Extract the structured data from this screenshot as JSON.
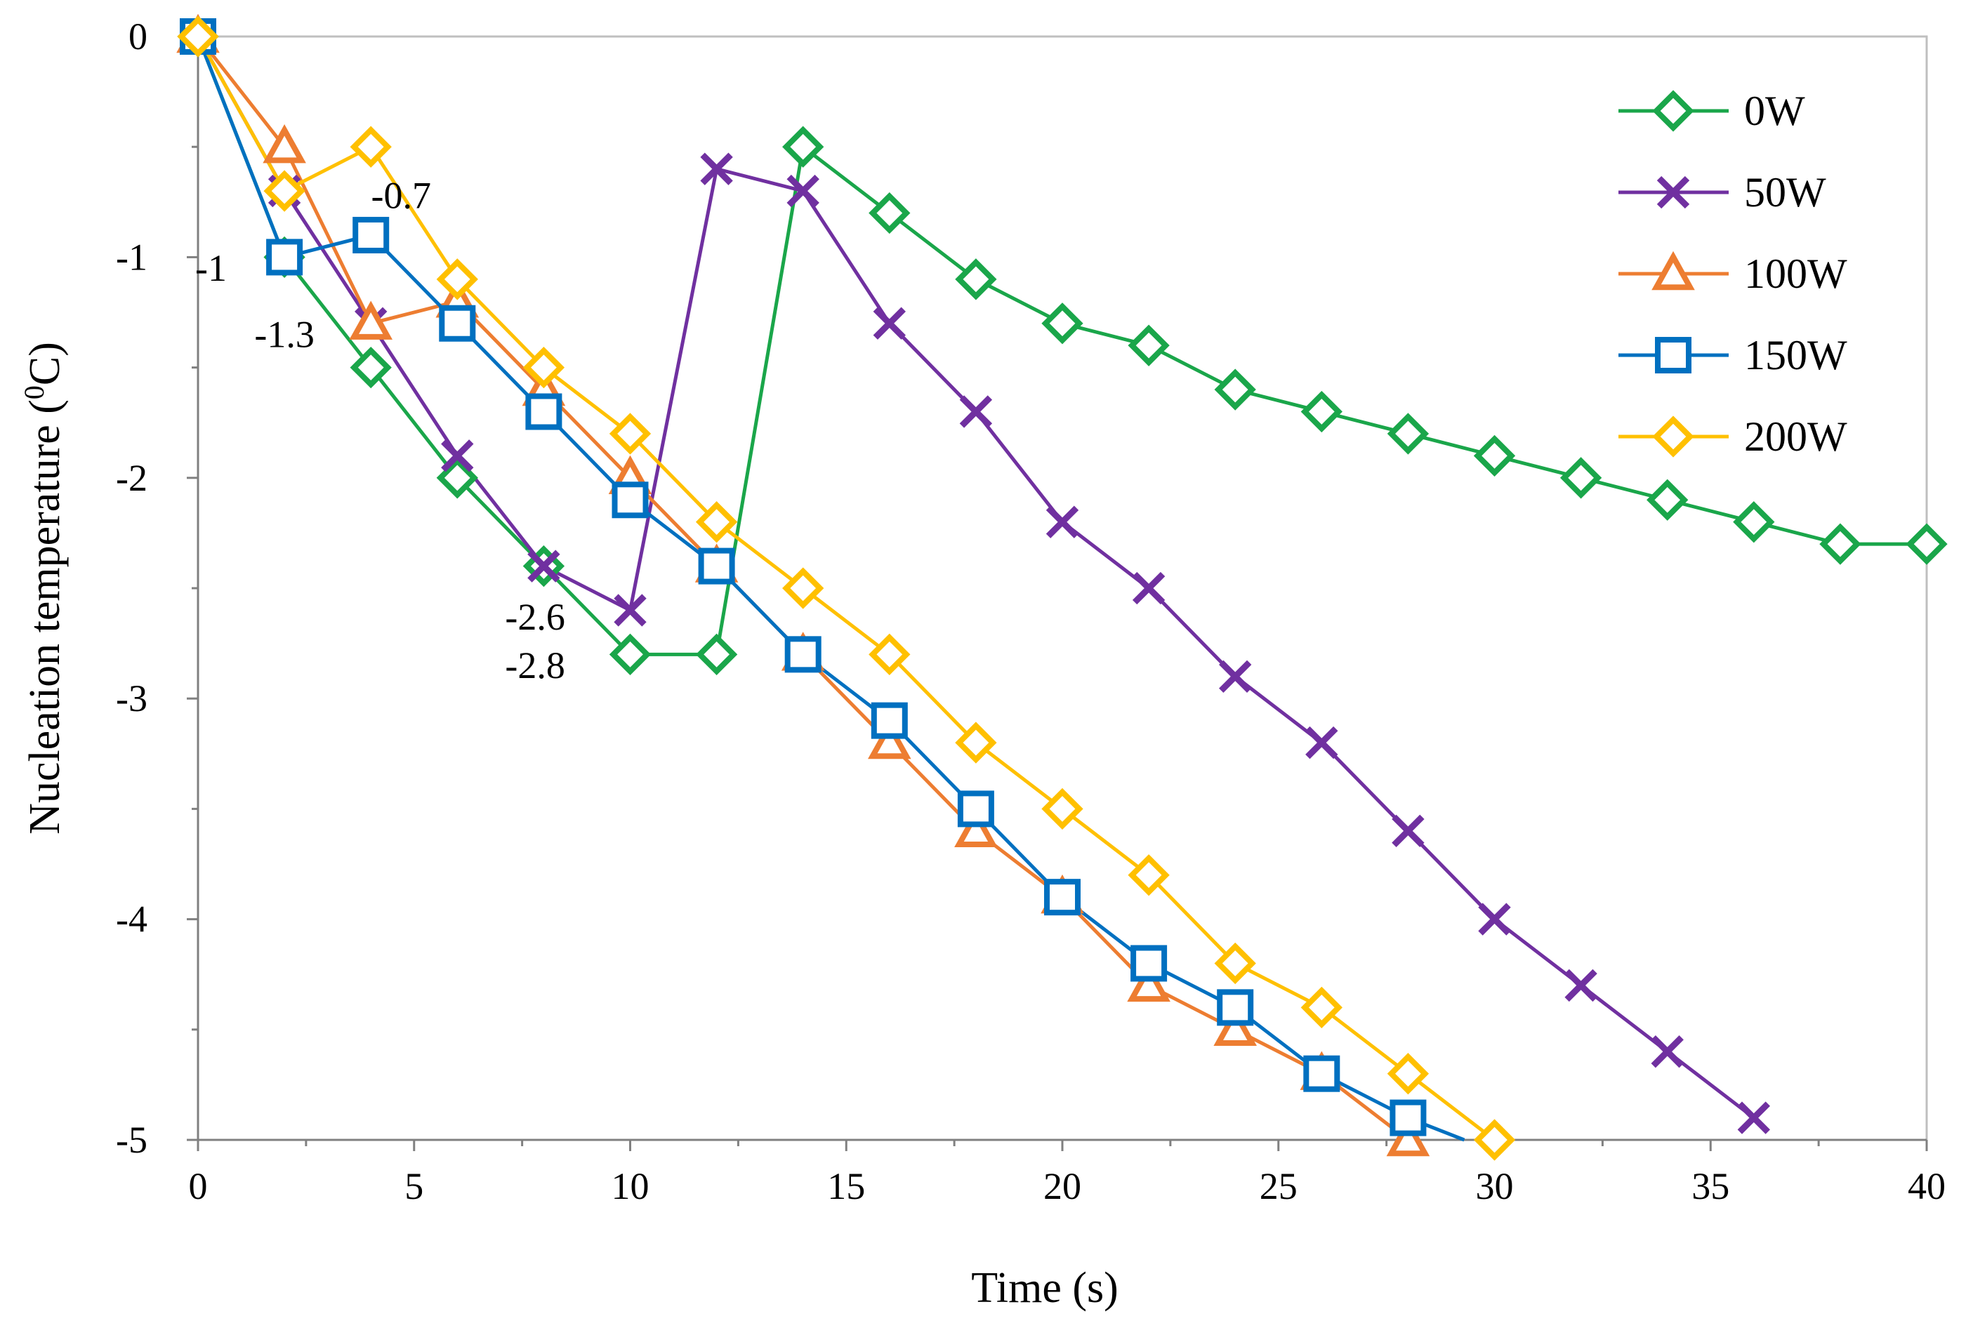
{
  "chart_data": {
    "type": "line",
    "title": "",
    "xlabel": "Time (s)",
    "ylabel": {
      "prefix": "Nucleation temperature (",
      "sup": "0",
      "unit": "C)"
    },
    "xlim": [
      0,
      40
    ],
    "ylim": [
      -5,
      0
    ],
    "xticks": [
      0,
      5,
      10,
      15,
      20,
      25,
      30,
      35,
      40
    ],
    "yticks": [
      0,
      -1,
      -2,
      -3,
      -4,
      -5
    ],
    "grid": false,
    "legend_position": "top-right",
    "series": [
      {
        "name": "0W",
        "color": "#1aa64a",
        "marker": "diamond",
        "x": [
          0,
          2,
          4,
          6,
          8,
          10,
          12,
          14,
          16,
          18,
          20,
          22,
          24,
          26,
          28,
          30,
          32,
          34,
          36,
          38,
          40
        ],
        "y": [
          0,
          -1.0,
          -1.5,
          -2.0,
          -2.4,
          -2.8,
          -2.8,
          -0.5,
          -0.8,
          -1.1,
          -1.3,
          -1.4,
          -1.6,
          -1.7,
          -1.8,
          -1.9,
          -2.0,
          -2.1,
          -2.2,
          -2.3,
          -2.3
        ]
      },
      {
        "name": "50W",
        "color": "#7030a0",
        "marker": "x",
        "x": [
          0,
          2,
          4,
          6,
          8,
          10,
          12,
          14,
          16,
          18,
          20,
          22,
          24,
          26,
          28,
          30,
          32,
          34,
          36
        ],
        "y": [
          0,
          -0.7,
          -1.3,
          -1.9,
          -2.4,
          -2.6,
          -0.6,
          -0.7,
          -1.3,
          -1.7,
          -2.2,
          -2.5,
          -2.9,
          -3.2,
          -3.6,
          -4.0,
          -4.3,
          -4.6,
          -4.9
        ]
      },
      {
        "name": "100W",
        "color": "#ed7d31",
        "marker": "triangle",
        "x": [
          0,
          2,
          4,
          6,
          8,
          10,
          12,
          14,
          16,
          18,
          20,
          22,
          24,
          26,
          28
        ],
        "y": [
          0,
          -0.5,
          -1.3,
          -1.2,
          -1.6,
          -2.0,
          -2.4,
          -2.8,
          -3.2,
          -3.6,
          -3.9,
          -4.3,
          -4.5,
          -4.7,
          -5.0
        ]
      },
      {
        "name": "150W",
        "color": "#0070c0",
        "marker": "square",
        "x": [
          0,
          2,
          4,
          6,
          8,
          10,
          12,
          14,
          16,
          18,
          20,
          22,
          24,
          26,
          28,
          29.3
        ],
        "y": [
          0,
          -1.0,
          -0.9,
          -1.3,
          -1.7,
          -2.1,
          -2.4,
          -2.8,
          -3.1,
          -3.5,
          -3.9,
          -4.2,
          -4.4,
          -4.7,
          -4.9,
          -5.0
        ],
        "markers_through": 15
      },
      {
        "name": "200W",
        "color": "#ffc000",
        "marker": "diamond",
        "x": [
          0,
          2,
          4,
          6,
          8,
          10,
          12,
          14,
          16,
          18,
          20,
          22,
          24,
          26,
          28,
          30
        ],
        "y": [
          0,
          -0.7,
          -0.5,
          -1.1,
          -1.5,
          -1.8,
          -2.2,
          -2.5,
          -2.8,
          -3.2,
          -3.5,
          -3.8,
          -4.2,
          -4.4,
          -4.7,
          -5.0
        ]
      }
    ],
    "annotations": [
      {
        "text": "-0.7",
        "x": 4.7,
        "y": -0.72
      },
      {
        "text": "-1",
        "x": 0.3,
        "y": -1.05
      },
      {
        "text": "-1.3",
        "x": 2.0,
        "y": -1.35
      },
      {
        "text": "-2.6",
        "x": 7.8,
        "y": -2.63
      },
      {
        "text": "-2.8",
        "x": 7.8,
        "y": -2.85
      }
    ]
  }
}
